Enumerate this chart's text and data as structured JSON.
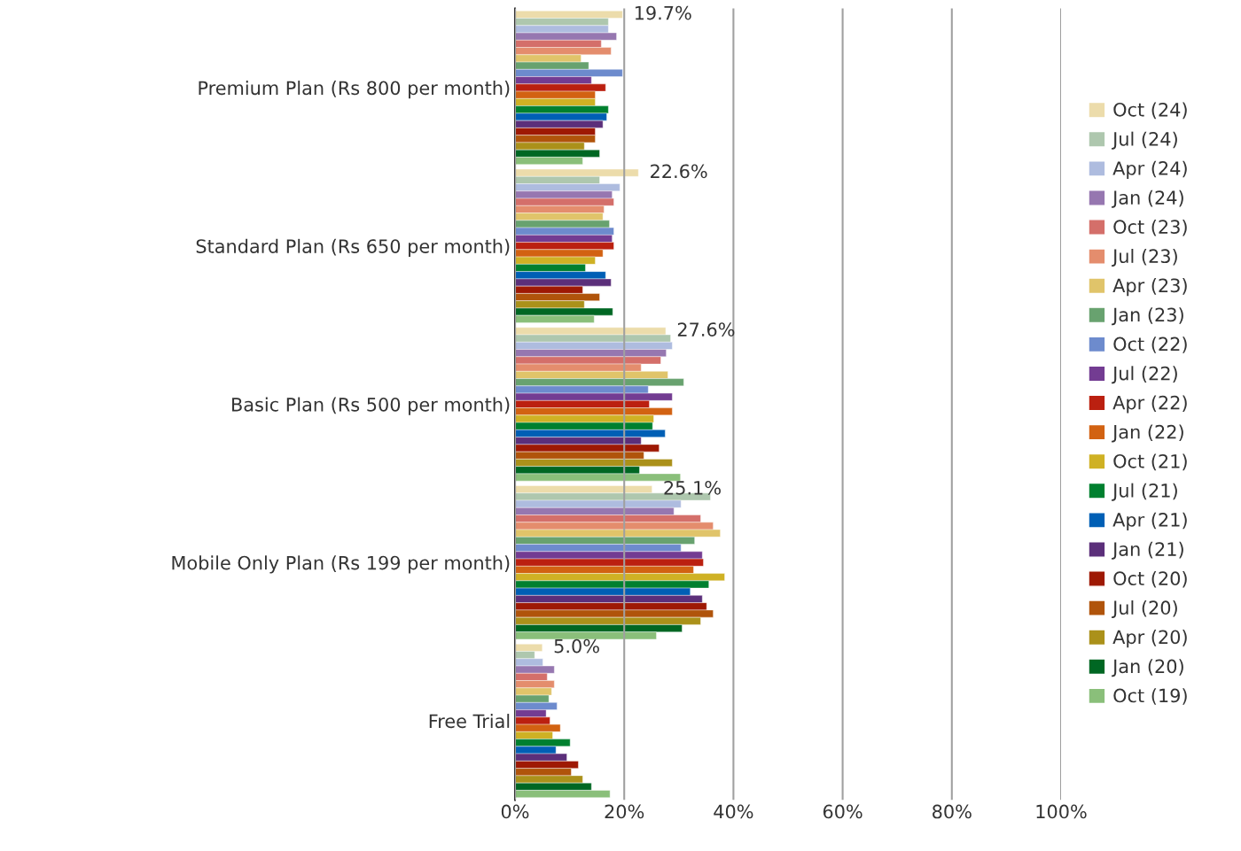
{
  "chart_data": {
    "type": "bar",
    "orientation": "horizontal",
    "categories": [
      "Premium Plan (Rs 800 per month)",
      "Standard Plan (Rs 650 per month)",
      "Basic Plan (Rs 500 per month)",
      "Mobile Only Plan (Rs 199 per month)",
      "Free Trial"
    ],
    "series": [
      {
        "name": "Oct (24)",
        "color": "#ecdcab",
        "values": [
          19.7,
          22.6,
          27.6,
          25.1,
          5.0
        ],
        "value_labels": [
          "19.7%",
          "22.6%",
          "27.6%",
          "25.1%",
          "5.0%"
        ]
      },
      {
        "name": "Jul (24)",
        "color": "#aec7ae",
        "values": [
          17.1,
          15.5,
          28.5,
          35.8,
          3.6
        ]
      },
      {
        "name": "Apr (24)",
        "color": "#aebcdf",
        "values": [
          17.1,
          19.2,
          28.8,
          30.4,
          5.1
        ]
      },
      {
        "name": "Jan (24)",
        "color": "#9677b0",
        "values": [
          18.6,
          17.8,
          27.7,
          29.1,
          7.2
        ]
      },
      {
        "name": "Oct (23)",
        "color": "#d46f6a",
        "values": [
          15.8,
          18.1,
          26.7,
          34.0,
          5.9
        ]
      },
      {
        "name": "Jul (23)",
        "color": "#e48d6d",
        "values": [
          17.6,
          16.3,
          23.1,
          36.3,
          7.2
        ]
      },
      {
        "name": "Apr (23)",
        "color": "#e0c46a",
        "values": [
          12.1,
          16.1,
          28.0,
          37.6,
          6.7
        ]
      },
      {
        "name": "Jan (23)",
        "color": "#68a26f",
        "values": [
          13.5,
          17.3,
          30.9,
          32.9,
          6.2
        ]
      },
      {
        "name": "Oct (22)",
        "color": "#6d8bcd",
        "values": [
          19.7,
          18.1,
          24.4,
          30.4,
          7.7
        ]
      },
      {
        "name": "Jul (22)",
        "color": "#733c92",
        "values": [
          14.0,
          17.8,
          28.8,
          34.3,
          5.7
        ]
      },
      {
        "name": "Apr (22)",
        "color": "#bb2010",
        "values": [
          16.6,
          18.1,
          24.6,
          34.5,
          6.4
        ]
      },
      {
        "name": "Jan (22)",
        "color": "#d26212",
        "values": [
          14.7,
          16.1,
          28.8,
          32.7,
          8.3
        ]
      },
      {
        "name": "Oct (21)",
        "color": "#cfb124",
        "values": [
          14.7,
          14.7,
          25.4,
          38.4,
          6.9
        ]
      },
      {
        "name": "Jul (21)",
        "color": "#00802f",
        "values": [
          17.1,
          12.9,
          25.2,
          35.5,
          10.1
        ]
      },
      {
        "name": "Apr (21)",
        "color": "#005fb5",
        "values": [
          16.8,
          16.6,
          27.5,
          32.1,
          7.5
        ]
      },
      {
        "name": "Jan (21)",
        "color": "#5b2f7a",
        "values": [
          16.1,
          17.6,
          23.1,
          34.3,
          9.5
        ]
      },
      {
        "name": "Oct (20)",
        "color": "#9e1904",
        "values": [
          14.7,
          12.4,
          26.4,
          35.1,
          11.6
        ]
      },
      {
        "name": "Jul (20)",
        "color": "#b0540b",
        "values": [
          14.7,
          15.5,
          23.6,
          36.3,
          10.3
        ]
      },
      {
        "name": "Apr (20)",
        "color": "#ab911a",
        "values": [
          12.7,
          12.7,
          28.8,
          34.0,
          12.4
        ]
      },
      {
        "name": "Jan (20)",
        "color": "#006723",
        "values": [
          15.5,
          17.9,
          22.8,
          30.6,
          14.0
        ]
      },
      {
        "name": "Oct (19)",
        "color": "#8abf7a",
        "values": [
          12.4,
          14.5,
          30.3,
          25.9,
          17.4
        ]
      }
    ],
    "xlim": [
      0,
      100
    ],
    "xticks": [
      {
        "value": 0,
        "label": "0%"
      },
      {
        "value": 20,
        "label": "20%"
      },
      {
        "value": 40,
        "label": "40%"
      },
      {
        "value": 60,
        "label": "60%"
      },
      {
        "value": 80,
        "label": "80%"
      },
      {
        "value": 100,
        "label": "100%"
      }
    ],
    "grid": "x",
    "legend": "right"
  }
}
